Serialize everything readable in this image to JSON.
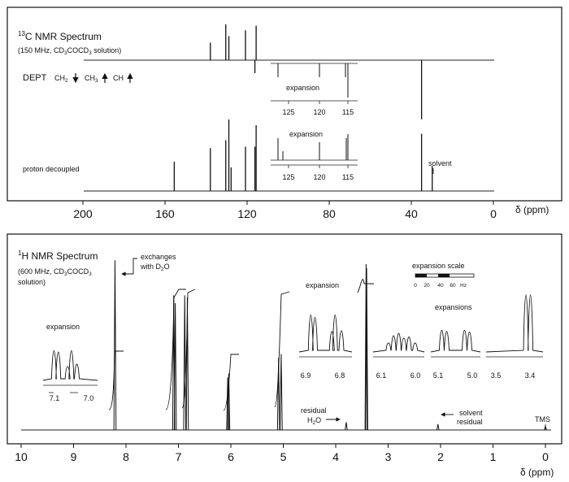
{
  "c13": {
    "title_sup": "13",
    "title": "C NMR Spectrum",
    "subtitle_a": "(150 MHz, CD",
    "subtitle_b": "3",
    "subtitle_c": "COCD",
    "subtitle_d": "3",
    "subtitle_e": " solution)",
    "dept_label": "DEPT",
    "dept_ch2": "CH",
    "dept_ch2_sub": "2",
    "dept_ch3": "CH",
    "dept_ch3_sub": "3",
    "dept_ch": "CH",
    "decoupled_label": "proton decoupled",
    "solvent_label": "solvent",
    "expansion1": {
      "label": "expansion",
      "ticks": [
        "125",
        "120",
        "115"
      ]
    },
    "expansion2": {
      "label": "expansion",
      "ticks": [
        "125",
        "120",
        "115"
      ]
    }
  },
  "h1": {
    "title_sup": "1",
    "title": "H NMR Spectrum",
    "subtitle_a": "(600 MHz, CD",
    "subtitle_b": "3",
    "subtitle_c": "COCD",
    "subtitle_d": "3",
    "subtitle_line2": "solution)",
    "exchanges_a": "exchanges",
    "exchanges_b": "with D",
    "exchanges_c": "2",
    "exchanges_d": "O",
    "residual_a": "residual",
    "residual_b": "H",
    "residual_c": "2",
    "residual_d": "O",
    "solvent_residual_a": "solvent",
    "solvent_residual_b": "residual",
    "tms": "TMS",
    "expansion_left": {
      "label": "expansion",
      "ticks": [
        "7.1",
        "7.0"
      ]
    },
    "expansion_mid": {
      "label": "expansion",
      "ticks": [
        "6.9",
        "6.8"
      ]
    },
    "expansion_61": {
      "ticks": [
        "6.1",
        "6.0"
      ]
    },
    "expansion_51": {
      "ticks": [
        "5.1",
        "5.0"
      ]
    },
    "expansion_34": {
      "ticks": [
        "3.5",
        "3.4"
      ]
    },
    "expansions_label": "expansions",
    "scale_label": "expansion scale",
    "scale_ticks": [
      "0",
      "20",
      "40",
      "60",
      "Hz"
    ]
  },
  "chart_data": [
    {
      "type": "line",
      "title": "13C NMR Spectrum",
      "xlabel": "δ (ppm)",
      "xlim": [
        200,
        0
      ],
      "x_ticks": [
        200,
        160,
        120,
        80,
        40,
        0
      ],
      "x_tick_labels": [
        "200",
        "160",
        "120",
        "80",
        "40",
        "0"
      ],
      "series": [
        {
          "name": "proton decoupled",
          "peaks_ppm": [
            155.5,
            137.9,
            130.4,
            128.9,
            127.8,
            120.8,
            116.2,
            115.6,
            35.0,
            29.8
          ],
          "heights": [
            0.41,
            0.6,
            0.71,
            1.0,
            0.33,
            0.62,
            0.62,
            0.92,
            0.8,
            0.35
          ]
        },
        {
          "name": "DEPT",
          "peaks_ppm": [
            137.9,
            130.4,
            128.9,
            120.8,
            115.6,
            116.2,
            35.0
          ],
          "heights": [
            0.27,
            0.55,
            0.37,
            0.46,
            0.53,
            -0.2,
            -0.91
          ]
        }
      ]
    },
    {
      "type": "line",
      "title": "1H NMR Spectrum",
      "xlabel": "δ (ppm)",
      "xlim": [
        10,
        0
      ],
      "x_ticks": [
        10,
        9,
        8,
        7,
        6,
        5,
        4,
        3,
        2,
        1,
        0
      ],
      "x_tick_labels": [
        "10",
        "9",
        "8",
        "7",
        "6",
        "5",
        "4",
        "3",
        "2",
        "1",
        "0"
      ],
      "series": [
        {
          "name": "1H",
          "peaks_ppm": [
            8.21,
            7.09,
            7.06,
            6.88,
            6.83,
            6.06,
            6.04,
            5.09,
            5.04,
            3.8,
            3.42,
            3.41,
            2.05,
            0.0
          ],
          "heights": [
            0.87,
            0.69,
            0.65,
            0.69,
            0.68,
            0.27,
            0.29,
            0.37,
            0.39,
            0.04,
            0.85,
            0.83,
            0.03,
            0.02
          ]
        }
      ]
    }
  ]
}
